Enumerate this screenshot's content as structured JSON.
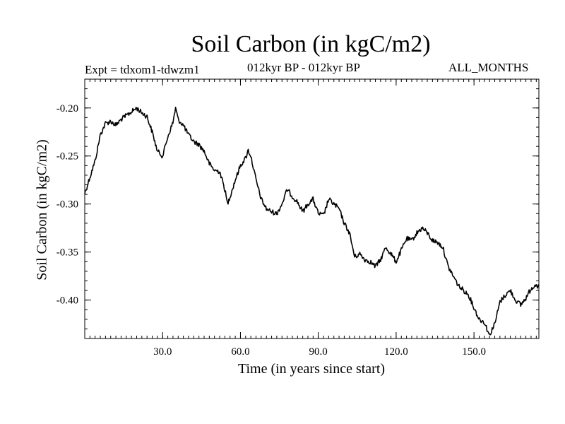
{
  "chart_data": {
    "type": "line",
    "title": "Soil Carbon (in kgC/m2)",
    "subtitle_left": "Expt = tdxom1-tdwzm1",
    "subtitle_center": "012kyr BP - 012kyr BP",
    "subtitle_right": "ALL_MONTHS",
    "xlabel": "Time (in years since start)",
    "ylabel": "Soil Carbon (in kgC/m2)",
    "xlim": [
      0,
      175
    ],
    "ylim": [
      -0.44,
      -0.17
    ],
    "xticks": [
      30,
      60,
      90,
      120,
      150
    ],
    "xtick_labels": [
      "30.0",
      "60.0",
      "90.0",
      "120.0",
      "150.0"
    ],
    "yticks": [
      -0.2,
      -0.25,
      -0.3,
      -0.35,
      -0.4
    ],
    "ytick_labels": [
      "-0.20",
      "-0.25",
      "-0.30",
      "-0.35",
      "-0.40"
    ],
    "grid": false,
    "series": [
      {
        "name": "Soil Carbon",
        "color": "#000000",
        "x": [
          0,
          2,
          4,
          6,
          8,
          10,
          12,
          14,
          16,
          18,
          20,
          22,
          24,
          26,
          28,
          30,
          32,
          34,
          35,
          36,
          38,
          40,
          42,
          44,
          46,
          48,
          50,
          52,
          54,
          55,
          56,
          58,
          60,
          62,
          63,
          64,
          66,
          68,
          70,
          72,
          74,
          76,
          78,
          80,
          82,
          84,
          86,
          88,
          90,
          92,
          94,
          96,
          98,
          100,
          102,
          104,
          106,
          108,
          110,
          112,
          114,
          116,
          118,
          120,
          122,
          124,
          126,
          128,
          130,
          132,
          134,
          136,
          138,
          140,
          142,
          144,
          146,
          148,
          150,
          152,
          154,
          156,
          157,
          158,
          160,
          162,
          164,
          166,
          168,
          170,
          172,
          174,
          175
        ],
        "values": [
          -0.289,
          -0.272,
          -0.255,
          -0.228,
          -0.216,
          -0.214,
          -0.218,
          -0.212,
          -0.208,
          -0.204,
          -0.2,
          -0.205,
          -0.209,
          -0.225,
          -0.245,
          -0.25,
          -0.23,
          -0.215,
          -0.2,
          -0.212,
          -0.218,
          -0.228,
          -0.235,
          -0.238,
          -0.245,
          -0.258,
          -0.265,
          -0.266,
          -0.285,
          -0.3,
          -0.292,
          -0.275,
          -0.26,
          -0.252,
          -0.244,
          -0.25,
          -0.275,
          -0.295,
          -0.305,
          -0.308,
          -0.31,
          -0.3,
          -0.285,
          -0.292,
          -0.298,
          -0.308,
          -0.3,
          -0.295,
          -0.31,
          -0.312,
          -0.295,
          -0.3,
          -0.305,
          -0.32,
          -0.33,
          -0.355,
          -0.352,
          -0.358,
          -0.36,
          -0.365,
          -0.358,
          -0.345,
          -0.352,
          -0.36,
          -0.348,
          -0.336,
          -0.338,
          -0.33,
          -0.325,
          -0.33,
          -0.338,
          -0.34,
          -0.345,
          -0.365,
          -0.375,
          -0.385,
          -0.39,
          -0.395,
          -0.408,
          -0.42,
          -0.423,
          -0.437,
          -0.43,
          -0.425,
          -0.402,
          -0.395,
          -0.39,
          -0.4,
          -0.405,
          -0.398,
          -0.388,
          -0.383,
          -0.388
        ]
      }
    ]
  }
}
